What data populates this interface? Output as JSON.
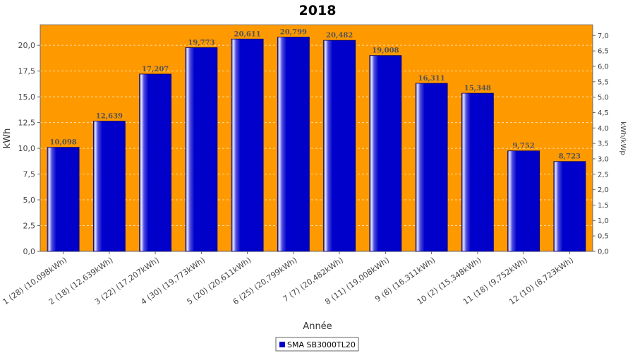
{
  "chart_data": {
    "type": "bar",
    "title": "2018",
    "xlabel": "Année",
    "ylabel": "kWh",
    "y2label": "kWh/kWp",
    "ylim": [
      0,
      22
    ],
    "y2lim": [
      0,
      7.35
    ],
    "yticks": [
      "0,0",
      "2,5",
      "5,0",
      "7,5",
      "10,0",
      "12,5",
      "15,0",
      "17,5",
      "20,0"
    ],
    "y2ticks": [
      "0,0",
      "0,5",
      "1,0",
      "1,5",
      "2,0",
      "2,5",
      "3,0",
      "3,5",
      "4,0",
      "4,5",
      "5,0",
      "5,5",
      "6,0",
      "6,5",
      "7,0"
    ],
    "categories": [
      "1 (28)  (10,098kWh)",
      "2 (18)  (12,639kWh)",
      "3 (22)  (17,207kWh)",
      "4 (30)  (19,773kWh)",
      "5 (20)  (20,611kWh)",
      "6 (25)  (20,799kWh)",
      "7 (7)  (20,482kWh)",
      "8 (11)  (19,008kWh)",
      "9 (8)  (16,311kWh)",
      "10 (2)  (15,348kWh)",
      "11 (18)  (9,752kWh)",
      "12 (10)  (8,723kWh)"
    ],
    "series": [
      {
        "name": "SMA SB3000TL20",
        "values": [
          10.098,
          12.639,
          17.207,
          19.773,
          20.611,
          20.799,
          20.482,
          19.008,
          16.311,
          15.348,
          9.752,
          8.723
        ],
        "labels": [
          "10,098",
          "12,639",
          "17,207",
          "19,773",
          "20,611",
          "20,799",
          "20,482",
          "19,008",
          "16,311",
          "15,348",
          "9,752",
          "8,723"
        ]
      }
    ],
    "grid": true,
    "legend": "bottom",
    "colors": {
      "plot_background": "#FF9900",
      "bar": "#0000CC",
      "bar_highlight": "#E8E8FF",
      "grid": "#FFE0A0"
    }
  }
}
